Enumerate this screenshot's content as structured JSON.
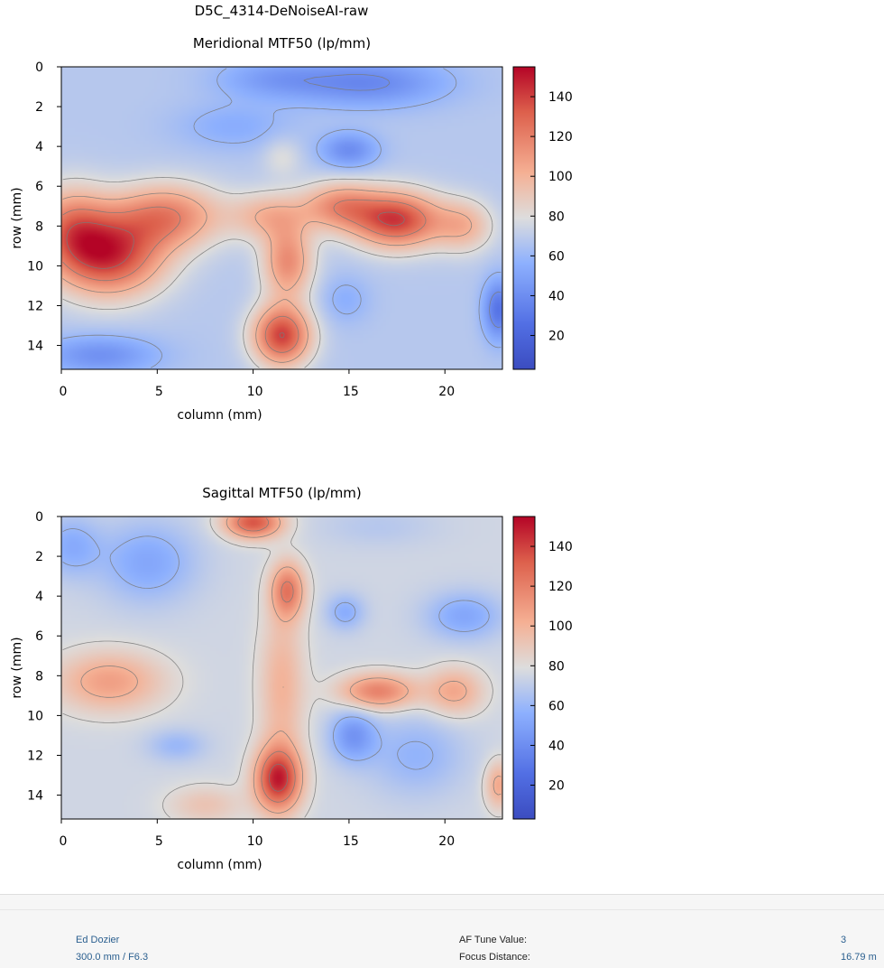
{
  "figure_title": "D5C_4314-DeNoiseAI-raw",
  "chart_data": [
    {
      "type": "heatmap",
      "title": "Meridional MTF50 (lp/mm)",
      "xlabel": "column (mm)",
      "ylabel": "row (mm)",
      "xlim": [
        0,
        23
      ],
      "ylim": [
        0,
        15.2
      ],
      "y_inverted": true,
      "xticks": [
        0,
        5,
        10,
        15,
        20
      ],
      "yticks": [
        0,
        2,
        4,
        6,
        8,
        10,
        12,
        14
      ],
      "colorscale": {
        "min": 3,
        "max": 155,
        "ticks": [
          20,
          40,
          60,
          80,
          100,
          120,
          140
        ],
        "scheme": "coolwarm"
      },
      "contour_step": 20,
      "surface_model": {
        "base": 68,
        "peaks": [
          {
            "col": 2.5,
            "row": 9.5,
            "value": 140,
            "sx": 2.8,
            "sy": 2.0
          },
          {
            "col": 0.5,
            "row": 8.0,
            "value": 112,
            "sx": 2.0,
            "sy": 2.0
          },
          {
            "col": 5.5,
            "row": 7.5,
            "value": 118,
            "sx": 2.8,
            "sy": 1.6
          },
          {
            "col": 11.5,
            "row": 13.5,
            "value": 140,
            "sx": 1.5,
            "sy": 1.5
          },
          {
            "col": 11.8,
            "row": 9.8,
            "value": 115,
            "sx": 1.3,
            "sy": 1.8
          },
          {
            "col": 10.8,
            "row": 7.5,
            "value": 98,
            "sx": 2.0,
            "sy": 1.2
          },
          {
            "col": 17.5,
            "row": 7.7,
            "value": 140,
            "sx": 2.3,
            "sy": 1.4
          },
          {
            "col": 14.5,
            "row": 7.0,
            "value": 112,
            "sx": 2.0,
            "sy": 1.2
          },
          {
            "col": 21.0,
            "row": 8.0,
            "value": 98,
            "sx": 1.5,
            "sy": 1.3
          },
          {
            "col": 16.0,
            "row": 0.8,
            "value": 38,
            "sx": 4.0,
            "sy": 1.2
          },
          {
            "col": 11.0,
            "row": 0.6,
            "value": 50,
            "sx": 3.0,
            "sy": 1.0
          },
          {
            "col": 15.0,
            "row": 4.2,
            "value": 40,
            "sx": 1.5,
            "sy": 0.9
          },
          {
            "col": 22.8,
            "row": 12.2,
            "value": 28,
            "sx": 0.8,
            "sy": 1.5
          },
          {
            "col": 2.0,
            "row": 14.5,
            "value": 42,
            "sx": 3.0,
            "sy": 1.0
          },
          {
            "col": 14.8,
            "row": 11.7,
            "value": 56,
            "sx": 1.3,
            "sy": 1.2
          },
          {
            "col": 9.0,
            "row": 3.0,
            "value": 55,
            "sx": 3.0,
            "sy": 1.2
          },
          {
            "col": 11.5,
            "row": 4.5,
            "value": 80,
            "sx": 1.0,
            "sy": 1.0
          }
        ]
      }
    },
    {
      "type": "heatmap",
      "title": "Sagittal MTF50 (lp/mm)",
      "xlabel": "column (mm)",
      "ylabel": "row (mm)",
      "xlim": [
        0,
        23
      ],
      "ylim": [
        0,
        15.2
      ],
      "y_inverted": true,
      "xticks": [
        0,
        5,
        10,
        15,
        20
      ],
      "yticks": [
        0,
        2,
        4,
        6,
        8,
        10,
        12,
        14
      ],
      "colorscale": {
        "min": 3,
        "max": 155,
        "ticks": [
          20,
          40,
          60,
          80,
          100,
          120,
          140
        ],
        "scheme": "coolwarm"
      },
      "contour_step": 20,
      "surface_model": {
        "base": 75,
        "peaks": [
          {
            "col": 11.3,
            "row": 13.2,
            "value": 145,
            "sx": 1.2,
            "sy": 1.6
          },
          {
            "col": 11.8,
            "row": 3.7,
            "value": 120,
            "sx": 0.9,
            "sy": 1.4
          },
          {
            "col": 11.5,
            "row": 8.5,
            "value": 100,
            "sx": 1.2,
            "sy": 4.0
          },
          {
            "col": 10.0,
            "row": 0.3,
            "value": 135,
            "sx": 1.5,
            "sy": 0.8
          },
          {
            "col": 2.5,
            "row": 8.3,
            "value": 108,
            "sx": 2.8,
            "sy": 1.5
          },
          {
            "col": 16.5,
            "row": 8.8,
            "value": 120,
            "sx": 2.0,
            "sy": 0.9
          },
          {
            "col": 20.5,
            "row": 8.8,
            "value": 105,
            "sx": 1.5,
            "sy": 1.2
          },
          {
            "col": 4.5,
            "row": 2.3,
            "value": 52,
            "sx": 2.5,
            "sy": 2.0
          },
          {
            "col": 0.5,
            "row": 1.5,
            "value": 55,
            "sx": 1.5,
            "sy": 1.5
          },
          {
            "col": 15.2,
            "row": 11.0,
            "value": 45,
            "sx": 1.2,
            "sy": 1.3
          },
          {
            "col": 14.8,
            "row": 4.8,
            "value": 55,
            "sx": 1.0,
            "sy": 0.9
          },
          {
            "col": 21.0,
            "row": 5.0,
            "value": 52,
            "sx": 2.0,
            "sy": 1.2
          },
          {
            "col": 18.5,
            "row": 12.0,
            "value": 58,
            "sx": 2.5,
            "sy": 2.0
          },
          {
            "col": 6.0,
            "row": 11.5,
            "value": 60,
            "sx": 1.5,
            "sy": 0.8
          },
          {
            "col": 22.8,
            "row": 13.5,
            "value": 105,
            "sx": 0.7,
            "sy": 1.2
          },
          {
            "col": 7.5,
            "row": 14.5,
            "value": 92,
            "sx": 2.0,
            "sy": 1.0
          },
          {
            "col": 16.5,
            "row": 0.5,
            "value": 68,
            "sx": 3.0,
            "sy": 1.0
          }
        ]
      }
    }
  ],
  "footer": {
    "left": [
      "Ed Dozier",
      "300.0 mm / F6.3"
    ],
    "labels": [
      "AF Tune Value:",
      "Focus Distance:"
    ],
    "values": [
      "3",
      "16.79 m"
    ]
  },
  "colors": {
    "axis": "#000000",
    "contour": "#7a7a7a",
    "footer_blue": "#2a5f8f",
    "footer_bg": "#f6f6f6"
  }
}
